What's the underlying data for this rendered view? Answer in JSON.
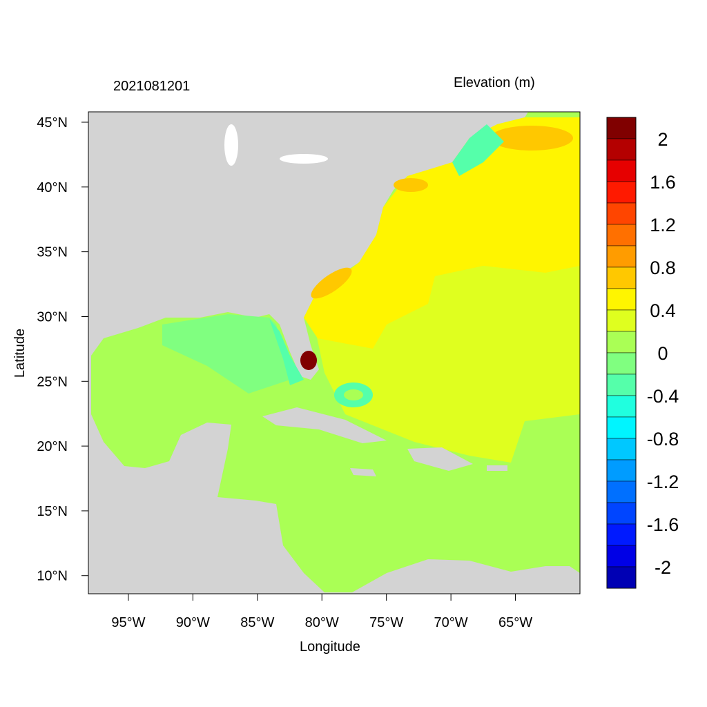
{
  "title_left": "2021081201",
  "title_right": "Elevation (m)",
  "xlabel": "Longitude",
  "ylabel": "Latitude",
  "x_ticks": [
    "95°W",
    "90°W",
    "85°W",
    "80°W",
    "75°W",
    "70°W",
    "65°W"
  ],
  "x_tick_values": [
    -95,
    -90,
    -85,
    -80,
    -75,
    -70,
    -65
  ],
  "y_ticks": [
    "10°N",
    "15°N",
    "20°N",
    "25°N",
    "30°N",
    "35°N",
    "40°N",
    "45°N"
  ],
  "y_tick_values": [
    10,
    15,
    20,
    25,
    30,
    35,
    40,
    45
  ],
  "extent": {
    "lon": [
      -98.1,
      -60.0
    ],
    "lat": [
      8.6,
      45.8
    ]
  },
  "land_color": "#d3d3d3",
  "colorbar": {
    "labels": [
      "2",
      "1.6",
      "1.2",
      "0.8",
      "0.4",
      "0",
      "-0.4",
      "-0.8",
      "-1.2",
      "-1.6",
      "-2"
    ],
    "levels_min": -2.2,
    "levels_max": 2.2,
    "step": 0.2,
    "colors": [
      "#800000",
      "#b40000",
      "#e60000",
      "#ff1a00",
      "#ff4500",
      "#ff7000",
      "#ff9c00",
      "#ffc800",
      "#fff500",
      "#dfff1f",
      "#aaff55",
      "#80ff80",
      "#55ffaa",
      "#20ffdf",
      "#00f5ff",
      "#00c8ff",
      "#009cff",
      "#0070ff",
      "#0045ff",
      "#001aff",
      "#0000e6",
      "#0000b4"
    ]
  }
}
